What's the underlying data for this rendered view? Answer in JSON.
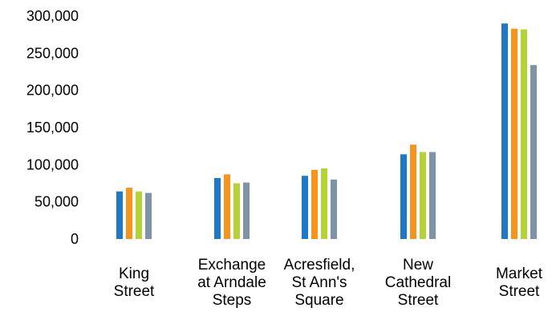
{
  "chart_data": {
    "type": "bar",
    "categories": [
      [
        "King",
        "Street"
      ],
      [
        "Exchange",
        "at Arndale",
        "Steps"
      ],
      [
        "Acresfield,",
        "St Ann's",
        "Square"
      ],
      [
        "New",
        "Cathedral",
        "Street"
      ],
      [
        "Market",
        "Street"
      ]
    ],
    "series": [
      {
        "color": "#1f77c8",
        "values": [
          64000,
          82000,
          85000,
          114000,
          290000
        ]
      },
      {
        "color": "#f7941d",
        "values": [
          69000,
          87000,
          93000,
          127000,
          283000
        ]
      },
      {
        "color": "#b5d334",
        "values": [
          64000,
          75000,
          95000,
          117000,
          282000
        ]
      },
      {
        "color": "#7f93a6",
        "values": [
          62000,
          76000,
          80000,
          117000,
          234000
        ]
      }
    ],
    "yticks": [
      "0",
      "50,000",
      "100,000",
      "150,000",
      "200,000",
      "250,000",
      "300,000"
    ],
    "ylim": [
      0,
      300000
    ],
    "grid": false,
    "legend": "none",
    "title": "",
    "xlabel": "",
    "ylabel": ""
  }
}
